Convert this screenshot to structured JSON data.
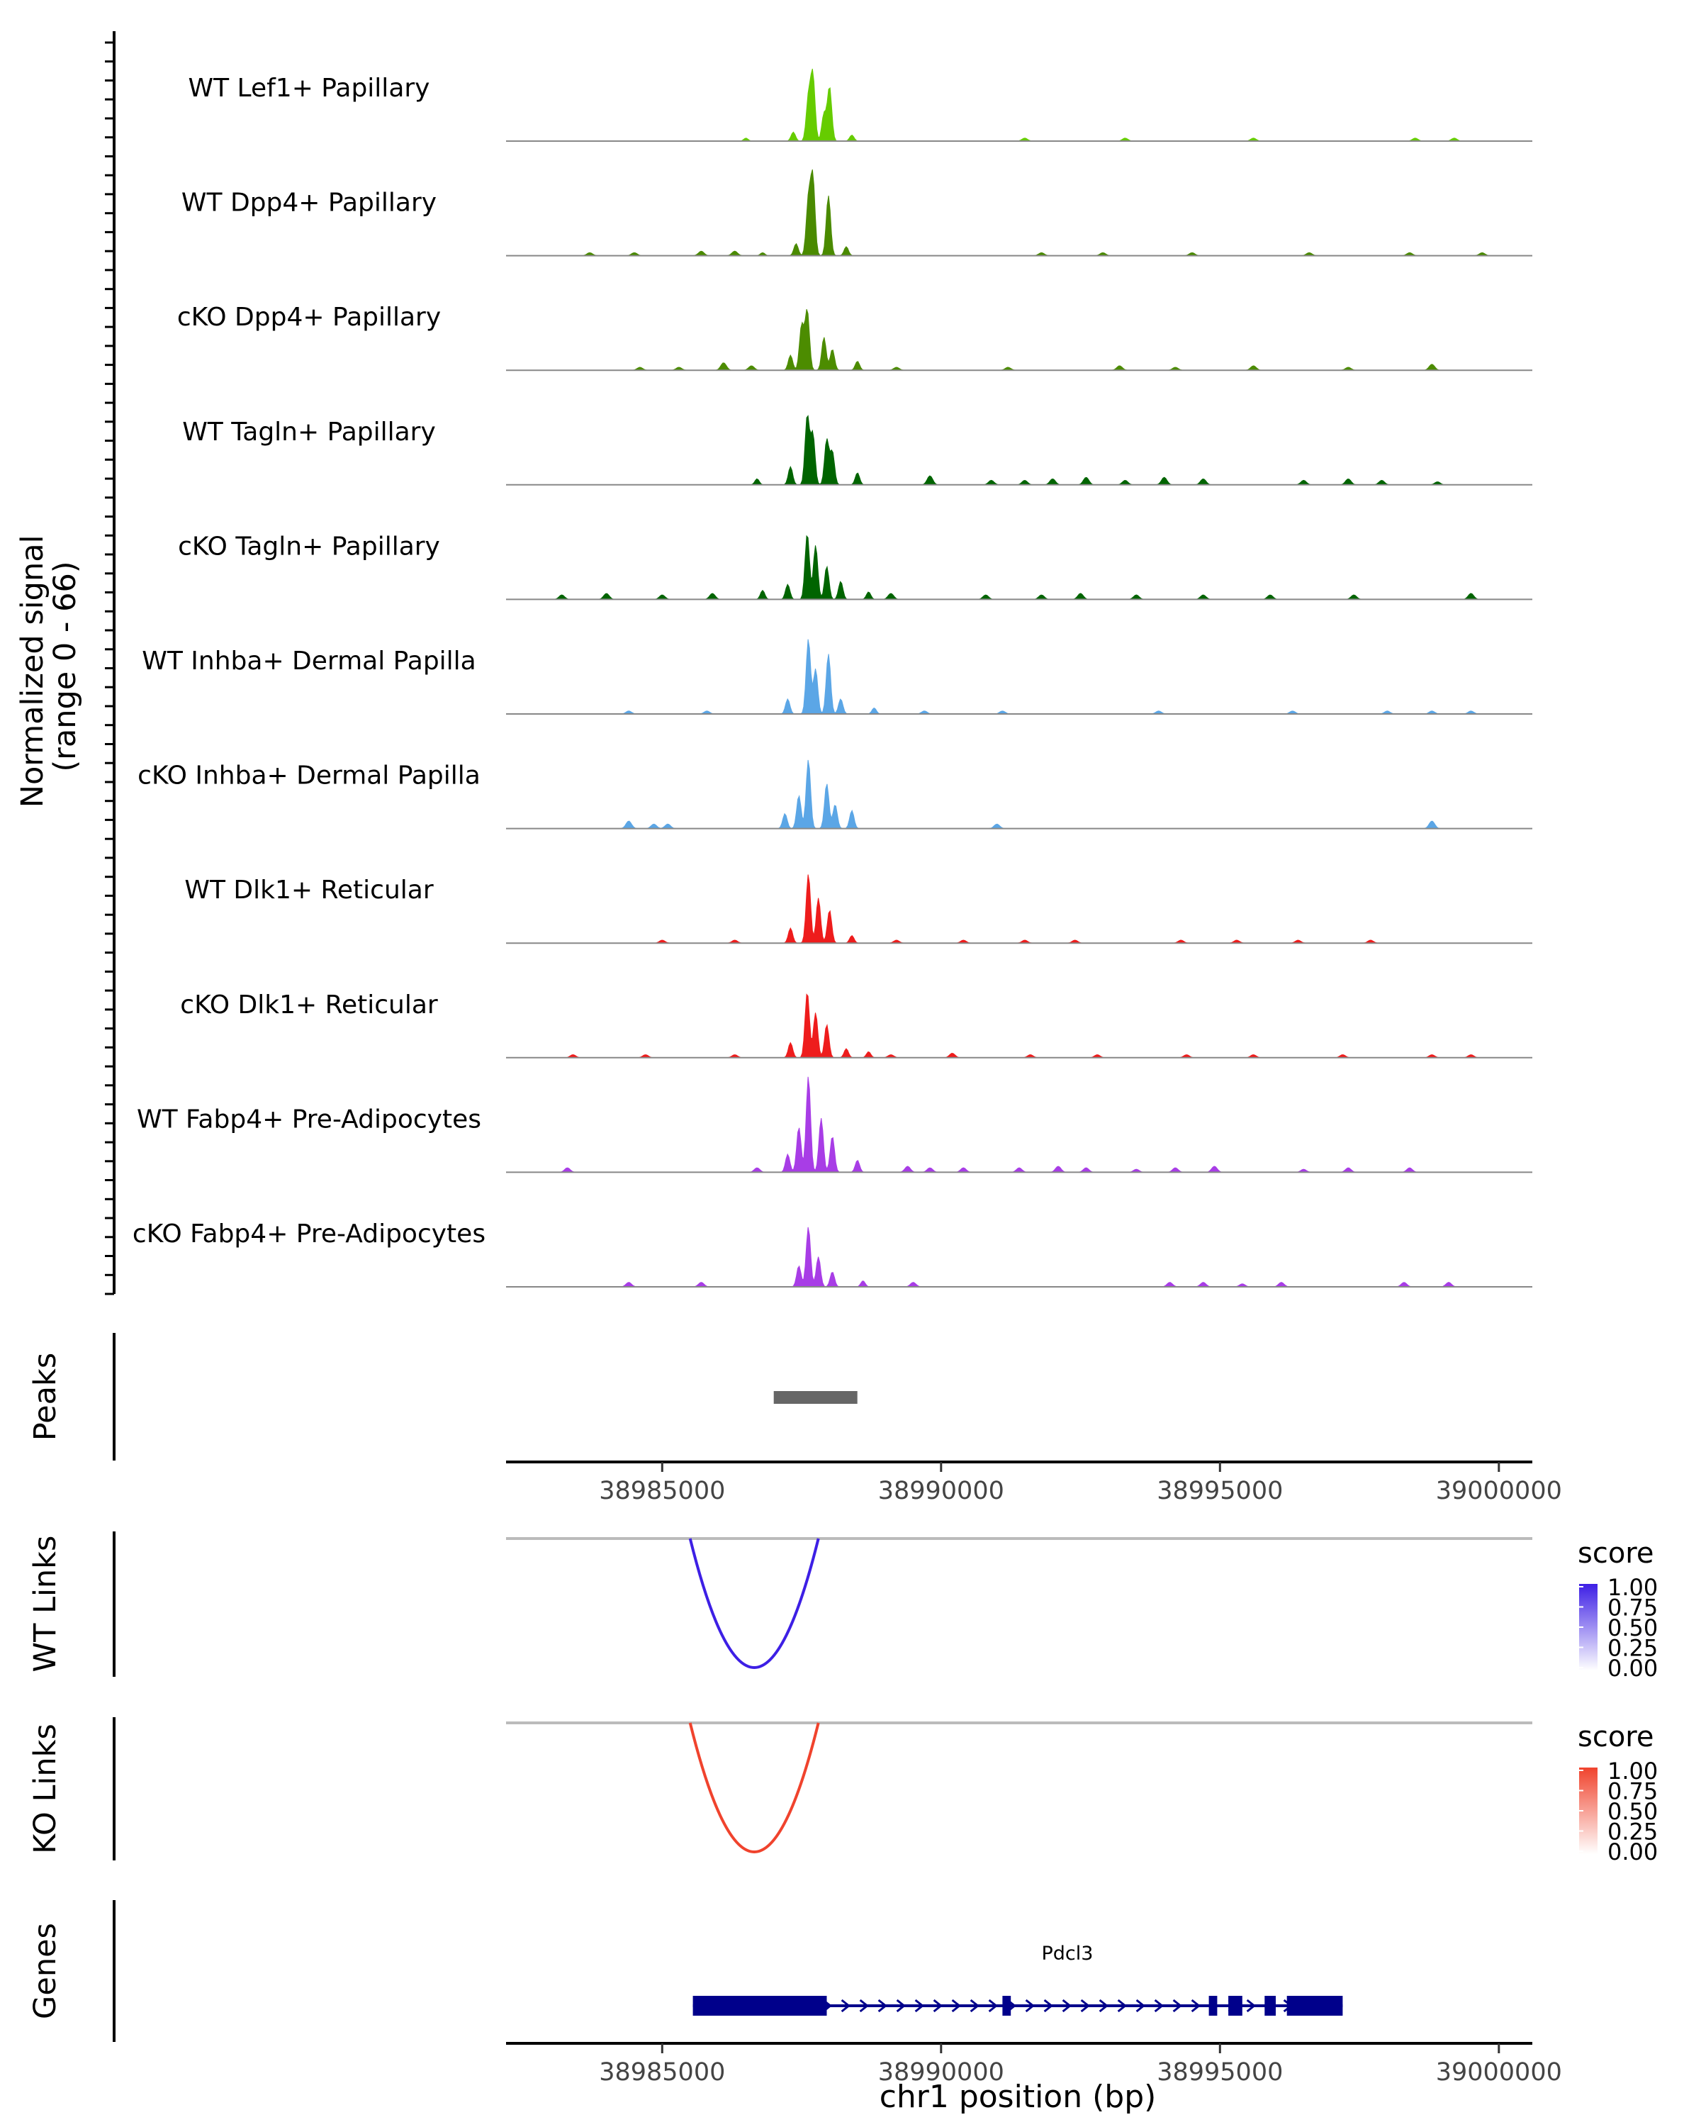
{
  "chart_data": {
    "type": "area",
    "genomic_axis": {
      "xlim": [
        38982200,
        39000600
      ],
      "ticks": [
        38985000,
        38990000,
        38995000,
        39000000
      ],
      "xlabel": "chr1 position (bp)"
    },
    "coverage": {
      "ylabel_line1": "Normalized signal",
      "ylabel_line2": "(range 0 - 66)",
      "ylim": [
        0,
        66
      ],
      "tracks": [
        {
          "name": "WT Lef1+ Papillary",
          "color": "#66CC00",
          "peaks": [
            [
              38987620,
              28
            ],
            [
              38987700,
              44
            ],
            [
              38987900,
              18
            ],
            [
              38988000,
              36
            ],
            [
              38987350,
              6
            ],
            [
              38988400,
              4
            ],
            [
              38986500,
              2
            ]
          ],
          "noise": [
            [
              38991500,
              2
            ],
            [
              38993300,
              2
            ],
            [
              38995600,
              2
            ],
            [
              38998500,
              2
            ],
            [
              38999200,
              2
            ]
          ]
        },
        {
          "name": "WT Dpp4+ Papillary",
          "color": "#4A8A00",
          "peaks": [
            [
              38987620,
              36
            ],
            [
              38987700,
              52
            ],
            [
              38987980,
              40
            ],
            [
              38987400,
              8
            ],
            [
              38988300,
              6
            ],
            [
              38986800,
              2
            ]
          ],
          "noise": [
            [
              38983700,
              2
            ],
            [
              38984500,
              2
            ],
            [
              38985700,
              3
            ],
            [
              38986300,
              3
            ],
            [
              38991800,
              2
            ],
            [
              38992900,
              2
            ],
            [
              38994500,
              2
            ],
            [
              38996600,
              2
            ],
            [
              38998400,
              2
            ],
            [
              38999700,
              2
            ]
          ]
        },
        {
          "name": "cKO Dpp4+ Papillary",
          "color": "#4C8C00",
          "peaks": [
            [
              38987600,
              40
            ],
            [
              38987500,
              30
            ],
            [
              38987900,
              22
            ],
            [
              38988050,
              14
            ],
            [
              38987300,
              10
            ],
            [
              38988500,
              6
            ]
          ],
          "noise": [
            [
              38984600,
              2
            ],
            [
              38985300,
              2
            ],
            [
              38986100,
              5
            ],
            [
              38986600,
              3
            ],
            [
              38989200,
              2
            ],
            [
              38991200,
              2
            ],
            [
              38993200,
              3
            ],
            [
              38994200,
              2
            ],
            [
              38995600,
              3
            ],
            [
              38997300,
              2
            ],
            [
              38998800,
              4
            ]
          ]
        },
        {
          "name": "WT Tagln+ Papillary",
          "color": "#006400",
          "peaks": [
            [
              38987600,
              46
            ],
            [
              38987700,
              34
            ],
            [
              38987950,
              30
            ],
            [
              38988050,
              22
            ],
            [
              38987300,
              12
            ],
            [
              38988500,
              8
            ],
            [
              38986700,
              4
            ]
          ],
          "noise": [
            [
              38989800,
              6
            ],
            [
              38990900,
              3
            ],
            [
              38991500,
              3
            ],
            [
              38992000,
              4
            ],
            [
              38992600,
              5
            ],
            [
              38993300,
              3
            ],
            [
              38994000,
              5
            ],
            [
              38994700,
              4
            ],
            [
              38996500,
              3
            ],
            [
              38997300,
              4
            ],
            [
              38997900,
              3
            ],
            [
              38998900,
              2
            ]
          ]
        },
        {
          "name": "cKO Tagln+ Papillary",
          "color": "#006400",
          "peaks": [
            [
              38987600,
              44
            ],
            [
              38987750,
              36
            ],
            [
              38987950,
              22
            ],
            [
              38988200,
              12
            ],
            [
              38987250,
              10
            ],
            [
              38986800,
              6
            ],
            [
              38988700,
              5
            ]
          ],
          "noise": [
            [
              38983200,
              3
            ],
            [
              38984000,
              4
            ],
            [
              38985000,
              3
            ],
            [
              38985900,
              4
            ],
            [
              38989100,
              4
            ],
            [
              38990800,
              3
            ],
            [
              38991800,
              3
            ],
            [
              38992500,
              4
            ],
            [
              38993500,
              3
            ],
            [
              38994700,
              3
            ],
            [
              38995900,
              3
            ],
            [
              38997400,
              3
            ],
            [
              38999500,
              4
            ]
          ]
        },
        {
          "name": "WT Inhba+ Dermal Papilla",
          "color": "#5BA6E6",
          "peaks": [
            [
              38987620,
              50
            ],
            [
              38987750,
              30
            ],
            [
              38987980,
              40
            ],
            [
              38988200,
              10
            ],
            [
              38987250,
              10
            ],
            [
              38988800,
              4
            ]
          ],
          "noise": [
            [
              38984400,
              2
            ],
            [
              38985800,
              2
            ],
            [
              38989700,
              2
            ],
            [
              38991100,
              2
            ],
            [
              38993900,
              2
            ],
            [
              38996300,
              2
            ],
            [
              38998000,
              2
            ],
            [
              38998800,
              2
            ],
            [
              38999500,
              2
            ]
          ]
        },
        {
          "name": "cKO Inhba+ Dermal Papilla",
          "color": "#5BA6E6",
          "peaks": [
            [
              38987620,
              46
            ],
            [
              38987450,
              22
            ],
            [
              38987950,
              30
            ],
            [
              38988400,
              12
            ],
            [
              38987200,
              10
            ],
            [
              38988100,
              16
            ]
          ],
          "noise": [
            [
              38984400,
              5
            ],
            [
              38984850,
              3
            ],
            [
              38985100,
              3
            ],
            [
              38991000,
              3
            ],
            [
              38998800,
              5
            ]
          ]
        },
        {
          "name": "WT Dlk1+ Reticular",
          "color": "#EE1C1C",
          "peaks": [
            [
              38987620,
              46
            ],
            [
              38987800,
              30
            ],
            [
              38988000,
              22
            ],
            [
              38987300,
              10
            ],
            [
              38988400,
              5
            ]
          ],
          "noise": [
            [
              38985000,
              2
            ],
            [
              38986300,
              2
            ],
            [
              38989200,
              2
            ],
            [
              38990400,
              2
            ],
            [
              38991500,
              2
            ],
            [
              38992400,
              2
            ],
            [
              38994300,
              2
            ],
            [
              38995300,
              2
            ],
            [
              38996400,
              2
            ],
            [
              38997700,
              2
            ]
          ]
        },
        {
          "name": "cKO Dlk1+ Reticular",
          "color": "#EE1C1C",
          "peaks": [
            [
              38987600,
              44
            ],
            [
              38987750,
              30
            ],
            [
              38987950,
              22
            ],
            [
              38987300,
              10
            ],
            [
              38988300,
              6
            ],
            [
              38988700,
              4
            ]
          ],
          "noise": [
            [
              38983400,
              2
            ],
            [
              38984700,
              2
            ],
            [
              38986300,
              2
            ],
            [
              38989100,
              2
            ],
            [
              38990200,
              3
            ],
            [
              38991600,
              2
            ],
            [
              38992800,
              2
            ],
            [
              38994400,
              2
            ],
            [
              38995600,
              2
            ],
            [
              38997200,
              2
            ],
            [
              38998800,
              2
            ],
            [
              38999500,
              2
            ]
          ]
        },
        {
          "name": "WT Fabp4+ Pre-Adipocytes",
          "color": "#A83DE6",
          "peaks": [
            [
              38987620,
              64
            ],
            [
              38987450,
              30
            ],
            [
              38987850,
              36
            ],
            [
              38988050,
              24
            ],
            [
              38987250,
              12
            ],
            [
              38988500,
              8
            ]
          ],
          "noise": [
            [
              38983300,
              3
            ],
            [
              38986700,
              3
            ],
            [
              38989400,
              4
            ],
            [
              38989800,
              3
            ],
            [
              38990400,
              3
            ],
            [
              38991400,
              3
            ],
            [
              38992100,
              4
            ],
            [
              38992600,
              3
            ],
            [
              38993500,
              2
            ],
            [
              38994200,
              3
            ],
            [
              38994900,
              4
            ],
            [
              38996500,
              2
            ],
            [
              38997300,
              3
            ],
            [
              38998400,
              3
            ]
          ]
        },
        {
          "name": "cKO Fabp4+ Pre-Adipocytes",
          "color": "#A83DE6",
          "peaks": [
            [
              38987620,
              40
            ],
            [
              38987450,
              14
            ],
            [
              38987800,
              20
            ],
            [
              38988050,
              10
            ],
            [
              38988600,
              4
            ]
          ],
          "noise": [
            [
              38984400,
              3
            ],
            [
              38985700,
              3
            ],
            [
              38989500,
              3
            ],
            [
              38994100,
              3
            ],
            [
              38994700,
              3
            ],
            [
              38995400,
              2
            ],
            [
              38996100,
              3
            ],
            [
              38998300,
              3
            ],
            [
              38999100,
              3
            ]
          ]
        }
      ]
    },
    "peaks_track": {
      "label": "Peaks",
      "regions": [
        [
          38987000,
          38988500
        ]
      ]
    },
    "links": [
      {
        "label": "WT Links",
        "start": 38985500,
        "end": 38987800,
        "depth": 0.9,
        "score": 1.0,
        "color_low": "#FFFFFF",
        "color_high": "#3D1FE5"
      },
      {
        "label": "KO Links",
        "start": 38985500,
        "end": 38987800,
        "depth": 0.9,
        "score": 1.0,
        "color_low": "#FFFFFF",
        "color_high": "#F0432D"
      }
    ],
    "legend": {
      "title": "score",
      "ticks": [
        "1.00",
        "0.75",
        "0.50",
        "0.25",
        "0.00"
      ]
    },
    "genes": {
      "label": "Genes",
      "gene_name": "Pdcl3",
      "strand": "+",
      "start": 38985550,
      "end": 38997200,
      "exons": [
        [
          38985550,
          38987950
        ],
        [
          38991100,
          38991250
        ],
        [
          38994800,
          38994950
        ],
        [
          38995150,
          38995400
        ],
        [
          38995800,
          38996000
        ],
        [
          38996200,
          38997200
        ]
      ]
    }
  }
}
